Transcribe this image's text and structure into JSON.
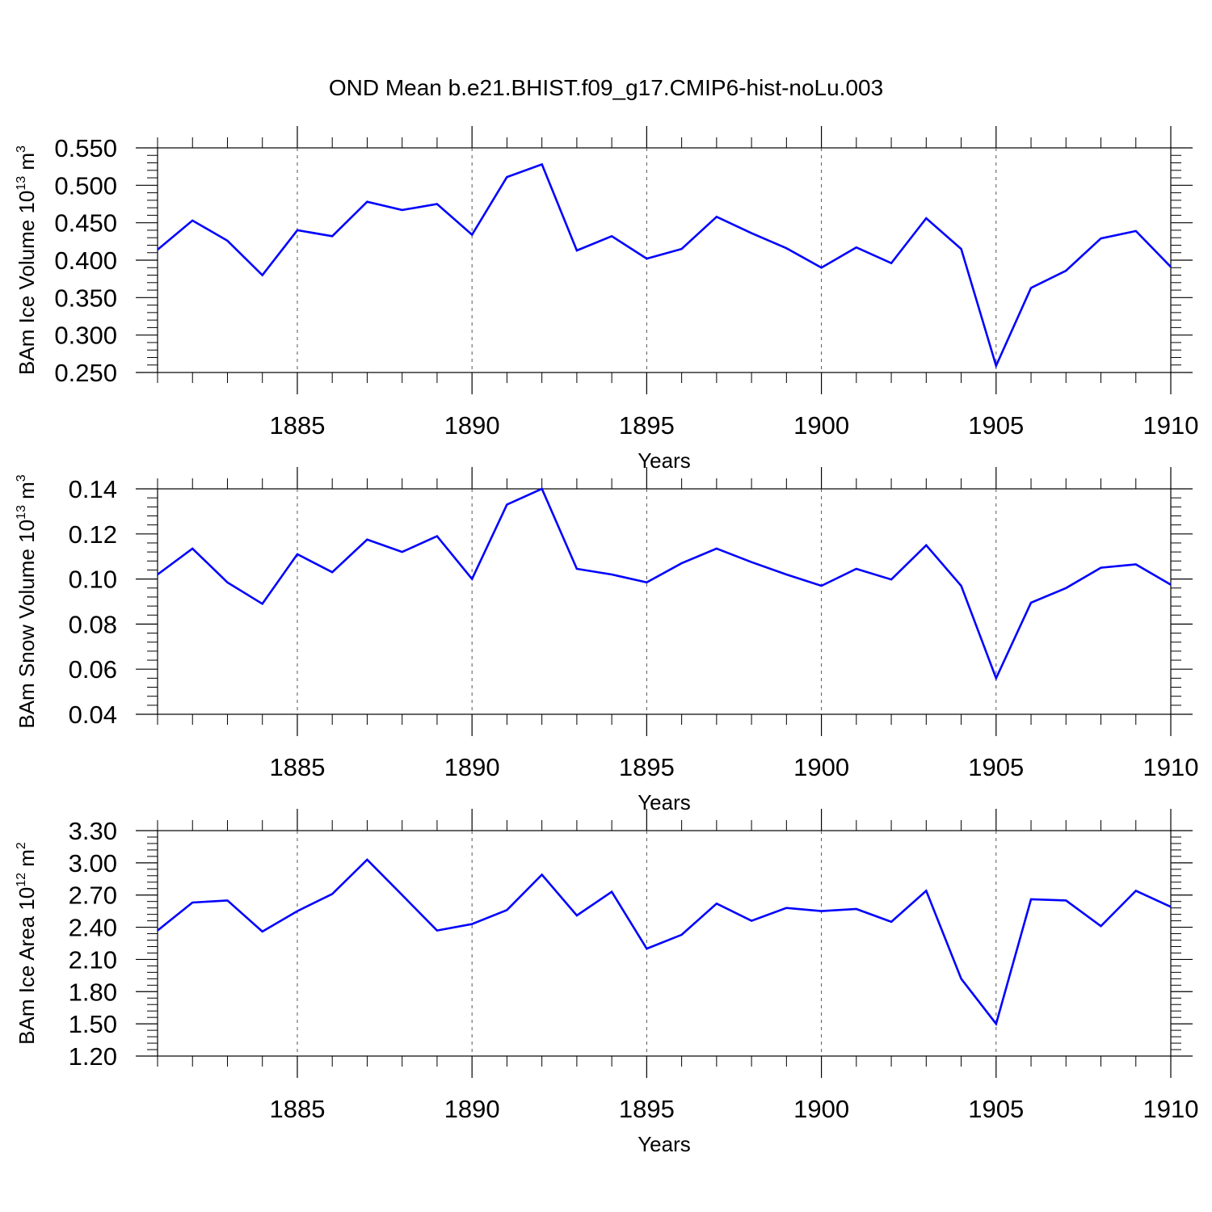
{
  "title": "OND Mean b.e21.BHIST.f09_g17.CMIP6-hist-noLu.003",
  "chart_data": [
    {
      "type": "line",
      "ylabel": {
        "base": "BAm Ice Volume 10",
        "exp": "13",
        "unit": " m",
        "unit_exp": "3"
      },
      "xlabel": "Years",
      "xlim": [
        1881,
        1910
      ],
      "ylim": [
        0.25,
        0.55
      ],
      "xticks": [
        1885,
        1890,
        1895,
        1900,
        1905,
        1910
      ],
      "xtick_labels": [
        "1885",
        "1890",
        "1895",
        "1900",
        "1905",
        "1910"
      ],
      "yticks": [
        0.25,
        0.3,
        0.35,
        0.4,
        0.45,
        0.5,
        0.55
      ],
      "ytick_labels": [
        "0.250",
        "0.300",
        "0.350",
        "0.400",
        "0.450",
        "0.500",
        "0.550"
      ],
      "grid": "dashed vertical at major x ticks",
      "color": "#0000ff",
      "series": [
        {
          "name": "Ice Volume",
          "x": [
            1881,
            1882,
            1883,
            1884,
            1885,
            1886,
            1887,
            1888,
            1889,
            1890,
            1891,
            1892,
            1893,
            1894,
            1895,
            1896,
            1897,
            1898,
            1899,
            1900,
            1901,
            1902,
            1903,
            1904,
            1905,
            1906,
            1907,
            1908,
            1909,
            1910
          ],
          "values": [
            0.414,
            0.453,
            0.426,
            0.38,
            0.44,
            0.432,
            0.478,
            0.467,
            0.475,
            0.434,
            0.511,
            0.528,
            0.413,
            0.432,
            0.402,
            0.415,
            0.458,
            0.436,
            0.416,
            0.39,
            0.417,
            0.396,
            0.456,
            0.415,
            0.259,
            0.363,
            0.386,
            0.429,
            0.439,
            0.391
          ]
        }
      ]
    },
    {
      "type": "line",
      "ylabel": {
        "base": "BAm Snow Volume 10",
        "exp": "13",
        "unit": " m",
        "unit_exp": "3"
      },
      "xlabel": "Years",
      "xlim": [
        1881,
        1910
      ],
      "ylim": [
        0.04,
        0.14
      ],
      "xticks": [
        1885,
        1890,
        1895,
        1900,
        1905,
        1910
      ],
      "xtick_labels": [
        "1885",
        "1890",
        "1895",
        "1900",
        "1905",
        "1910"
      ],
      "yticks": [
        0.04,
        0.06,
        0.08,
        0.1,
        0.12,
        0.14
      ],
      "ytick_labels": [
        "0.04",
        "0.06",
        "0.08",
        "0.10",
        "0.12",
        "0.14"
      ],
      "grid": "dashed vertical at major x ticks",
      "color": "#0000ff",
      "series": [
        {
          "name": "Snow Volume",
          "x": [
            1881,
            1882,
            1883,
            1884,
            1885,
            1886,
            1887,
            1888,
            1889,
            1890,
            1891,
            1892,
            1893,
            1894,
            1895,
            1896,
            1897,
            1898,
            1899,
            1900,
            1901,
            1902,
            1903,
            1904,
            1905,
            1906,
            1907,
            1908,
            1909,
            1910
          ],
          "values": [
            0.102,
            0.1135,
            0.0985,
            0.089,
            0.111,
            0.103,
            0.1175,
            0.112,
            0.119,
            0.1,
            0.133,
            0.14,
            0.1045,
            0.102,
            0.0985,
            0.107,
            0.1135,
            0.1075,
            0.102,
            0.097,
            0.1045,
            0.0998,
            0.115,
            0.097,
            0.056,
            0.0895,
            0.096,
            0.105,
            0.1065,
            0.0975
          ]
        }
      ]
    },
    {
      "type": "line",
      "ylabel": {
        "base": "BAm Ice Area 10",
        "exp": "12",
        "unit": " m",
        "unit_exp": "2"
      },
      "xlabel": "Years",
      "xlim": [
        1881,
        1910
      ],
      "ylim": [
        1.2,
        3.3
      ],
      "xticks": [
        1885,
        1890,
        1895,
        1900,
        1905,
        1910
      ],
      "xtick_labels": [
        "1885",
        "1890",
        "1895",
        "1900",
        "1905",
        "1910"
      ],
      "yticks": [
        1.2,
        1.5,
        1.8,
        2.1,
        2.4,
        2.7,
        3.0,
        3.3
      ],
      "ytick_labels": [
        "1.20",
        "1.50",
        "1.80",
        "2.10",
        "2.40",
        "2.70",
        "3.00",
        "3.30"
      ],
      "grid": "dashed vertical at major x ticks",
      "color": "#0000ff",
      "series": [
        {
          "name": "Ice Area",
          "x": [
            1881,
            1882,
            1883,
            1884,
            1885,
            1886,
            1887,
            1888,
            1889,
            1890,
            1891,
            1892,
            1893,
            1894,
            1895,
            1896,
            1897,
            1898,
            1899,
            1900,
            1901,
            1902,
            1903,
            1904,
            1905,
            1906,
            1907,
            1908,
            1909,
            1910
          ],
          "values": [
            2.37,
            2.63,
            2.65,
            2.36,
            2.55,
            2.71,
            3.03,
            2.7,
            2.37,
            2.43,
            2.56,
            2.89,
            2.51,
            2.73,
            2.2,
            2.33,
            2.62,
            2.46,
            2.58,
            2.55,
            2.57,
            2.45,
            2.74,
            1.92,
            1.5,
            2.66,
            2.65,
            2.41,
            2.74,
            2.59
          ]
        }
      ]
    }
  ]
}
